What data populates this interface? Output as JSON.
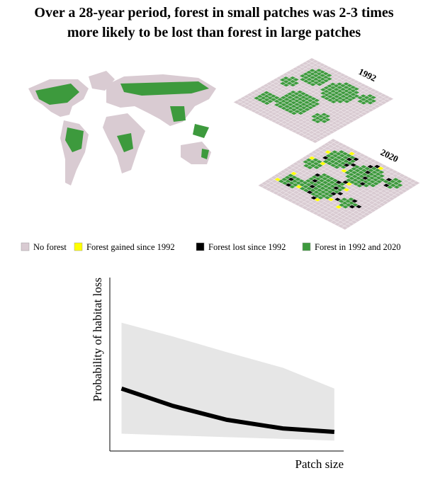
{
  "chart_data": {
    "type": "line",
    "title": "Over a 28-year period, forest in small patches was 2-3 times",
    "subtitle": "more likely to be lost than forest in large patches",
    "map_labels": [
      "1992",
      "2020"
    ],
    "legend": [
      {
        "name": "No forest",
        "color": "#d9cbd2"
      },
      {
        "name": "Forest gained since 1992",
        "color": "#ffff00"
      },
      {
        "name": "Forest lost since 1992",
        "color": "#000000"
      },
      {
        "name": "Forest in 1992 and 2020",
        "color": "#3d9a3d"
      }
    ],
    "xlabel": "Patch size",
    "ylabel": "Probability of habitat loss",
    "x": [
      0.05,
      0.27,
      0.5,
      0.74,
      0.96
    ],
    "values": [
      0.36,
      0.26,
      0.18,
      0.13,
      0.11
    ],
    "band_upper": [
      0.74,
      0.66,
      0.57,
      0.48,
      0.36
    ],
    "band_lower": [
      0.1,
      0.09,
      0.08,
      0.07,
      0.06
    ],
    "line_color": "#000000",
    "band_color": "#e6e6e6",
    "xlim": [
      0,
      1
    ],
    "ylim": [
      0,
      1
    ]
  }
}
